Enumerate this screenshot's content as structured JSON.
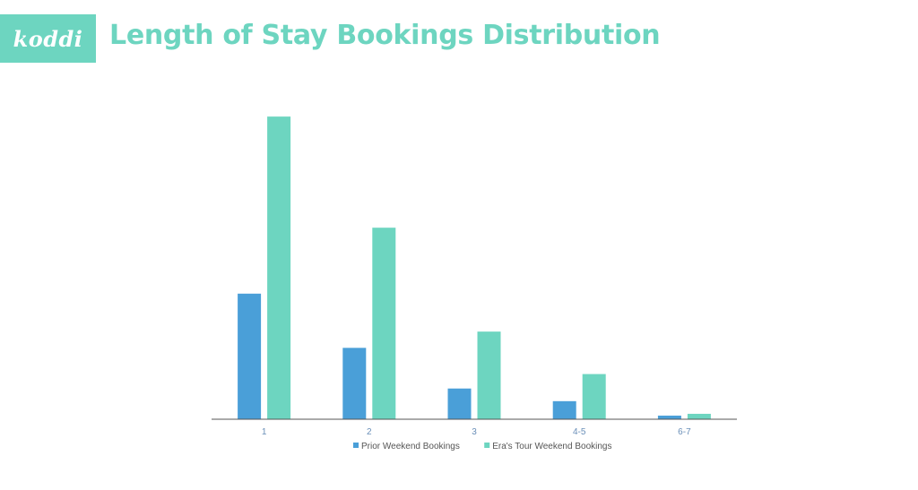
{
  "logo": {
    "text": "koddi"
  },
  "header": {
    "title": "Length of Stay Bookings Distribution"
  },
  "colors": {
    "prior": "#4a9fd8",
    "eras": "#6dd5c0",
    "axis": "#555555",
    "title": "#6dd5c0"
  },
  "chart_data": {
    "type": "bar",
    "title": "Length of Stay Bookings Distribution",
    "xlabel": "",
    "ylabel": "",
    "categories": [
      "1",
      "2",
      "3",
      "4-5",
      "6-7"
    ],
    "series": [
      {
        "name": "Prior Weekend Bookings",
        "values": [
          139,
          79,
          34,
          20,
          4
        ]
      },
      {
        "name": "Era's Tour Weekend Bookings",
        "values": [
          335,
          212,
          97,
          50,
          6
        ]
      }
    ],
    "ylim": [
      0,
      350
    ],
    "grid": false,
    "legend_position": "bottom"
  }
}
